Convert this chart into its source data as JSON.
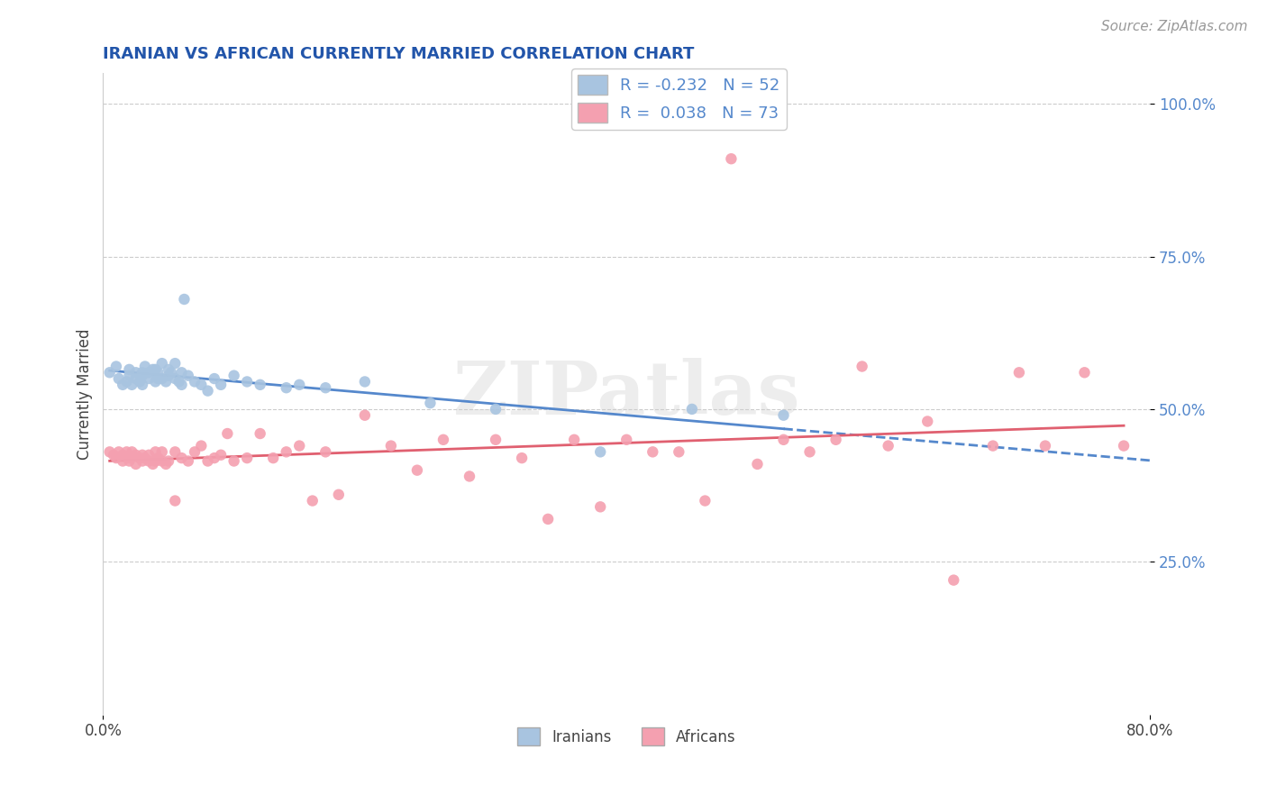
{
  "title": "IRANIAN VS AFRICAN CURRENTLY MARRIED CORRELATION CHART",
  "source": "Source: ZipAtlas.com",
  "ylabel": "Currently Married",
  "xlim": [
    0.0,
    0.8
  ],
  "ylim": [
    0.0,
    1.05
  ],
  "ytick_vals": [
    0.25,
    0.5,
    0.75,
    1.0
  ],
  "ytick_labels": [
    "25.0%",
    "50.0%",
    "75.0%",
    "100.0%"
  ],
  "xticks": [
    0.0,
    0.8
  ],
  "xtick_labels": [
    "0.0%",
    "80.0%"
  ],
  "legend_R1": "-0.232",
  "legend_N1": "52",
  "legend_R2": "0.038",
  "legend_N2": "73",
  "iranian_color": "#a8c4e0",
  "african_color": "#f4a0b0",
  "line_iranian_color": "#5588cc",
  "line_african_color": "#e06070",
  "watermark": "ZIPatlas",
  "title_color": "#2255aa",
  "tick_color": "#5588cc",
  "background_color": "#ffffff",
  "iranians_x": [
    0.005,
    0.01,
    0.012,
    0.015,
    0.018,
    0.02,
    0.02,
    0.022,
    0.025,
    0.025,
    0.028,
    0.03,
    0.03,
    0.03,
    0.032,
    0.035,
    0.035,
    0.038,
    0.04,
    0.04,
    0.042,
    0.042,
    0.045,
    0.045,
    0.048,
    0.05,
    0.05,
    0.052,
    0.055,
    0.055,
    0.058,
    0.06,
    0.06,
    0.062,
    0.065,
    0.07,
    0.075,
    0.08,
    0.085,
    0.09,
    0.1,
    0.11,
    0.12,
    0.14,
    0.15,
    0.17,
    0.2,
    0.25,
    0.3,
    0.38,
    0.45,
    0.52
  ],
  "iranians_y": [
    0.56,
    0.57,
    0.55,
    0.54,
    0.545,
    0.555,
    0.565,
    0.54,
    0.55,
    0.56,
    0.545,
    0.555,
    0.56,
    0.54,
    0.57,
    0.55,
    0.56,
    0.565,
    0.545,
    0.565,
    0.55,
    0.56,
    0.55,
    0.575,
    0.545,
    0.555,
    0.565,
    0.56,
    0.55,
    0.575,
    0.545,
    0.54,
    0.56,
    0.68,
    0.555,
    0.545,
    0.54,
    0.53,
    0.55,
    0.54,
    0.555,
    0.545,
    0.54,
    0.535,
    0.54,
    0.535,
    0.545,
    0.51,
    0.5,
    0.43,
    0.5,
    0.49
  ],
  "africans_x": [
    0.005,
    0.008,
    0.01,
    0.012,
    0.015,
    0.015,
    0.018,
    0.02,
    0.02,
    0.022,
    0.025,
    0.025,
    0.028,
    0.03,
    0.03,
    0.032,
    0.035,
    0.035,
    0.038,
    0.04,
    0.04,
    0.042,
    0.045,
    0.045,
    0.048,
    0.05,
    0.055,
    0.055,
    0.06,
    0.065,
    0.07,
    0.075,
    0.08,
    0.085,
    0.09,
    0.095,
    0.1,
    0.11,
    0.12,
    0.13,
    0.14,
    0.15,
    0.16,
    0.17,
    0.18,
    0.2,
    0.22,
    0.24,
    0.26,
    0.28,
    0.3,
    0.32,
    0.34,
    0.36,
    0.38,
    0.4,
    0.42,
    0.44,
    0.46,
    0.48,
    0.5,
    0.52,
    0.54,
    0.56,
    0.58,
    0.6,
    0.63,
    0.65,
    0.68,
    0.7,
    0.72,
    0.75,
    0.78
  ],
  "africans_y": [
    0.43,
    0.425,
    0.42,
    0.43,
    0.425,
    0.415,
    0.43,
    0.42,
    0.415,
    0.43,
    0.425,
    0.41,
    0.42,
    0.425,
    0.415,
    0.42,
    0.415,
    0.425,
    0.41,
    0.415,
    0.43,
    0.42,
    0.415,
    0.43,
    0.41,
    0.415,
    0.43,
    0.35,
    0.42,
    0.415,
    0.43,
    0.44,
    0.415,
    0.42,
    0.425,
    0.46,
    0.415,
    0.42,
    0.46,
    0.42,
    0.43,
    0.44,
    0.35,
    0.43,
    0.36,
    0.49,
    0.44,
    0.4,
    0.45,
    0.39,
    0.45,
    0.42,
    0.32,
    0.45,
    0.34,
    0.45,
    0.43,
    0.43,
    0.35,
    0.91,
    0.41,
    0.45,
    0.43,
    0.45,
    0.57,
    0.44,
    0.48,
    0.22,
    0.44,
    0.56,
    0.44,
    0.56,
    0.44
  ]
}
